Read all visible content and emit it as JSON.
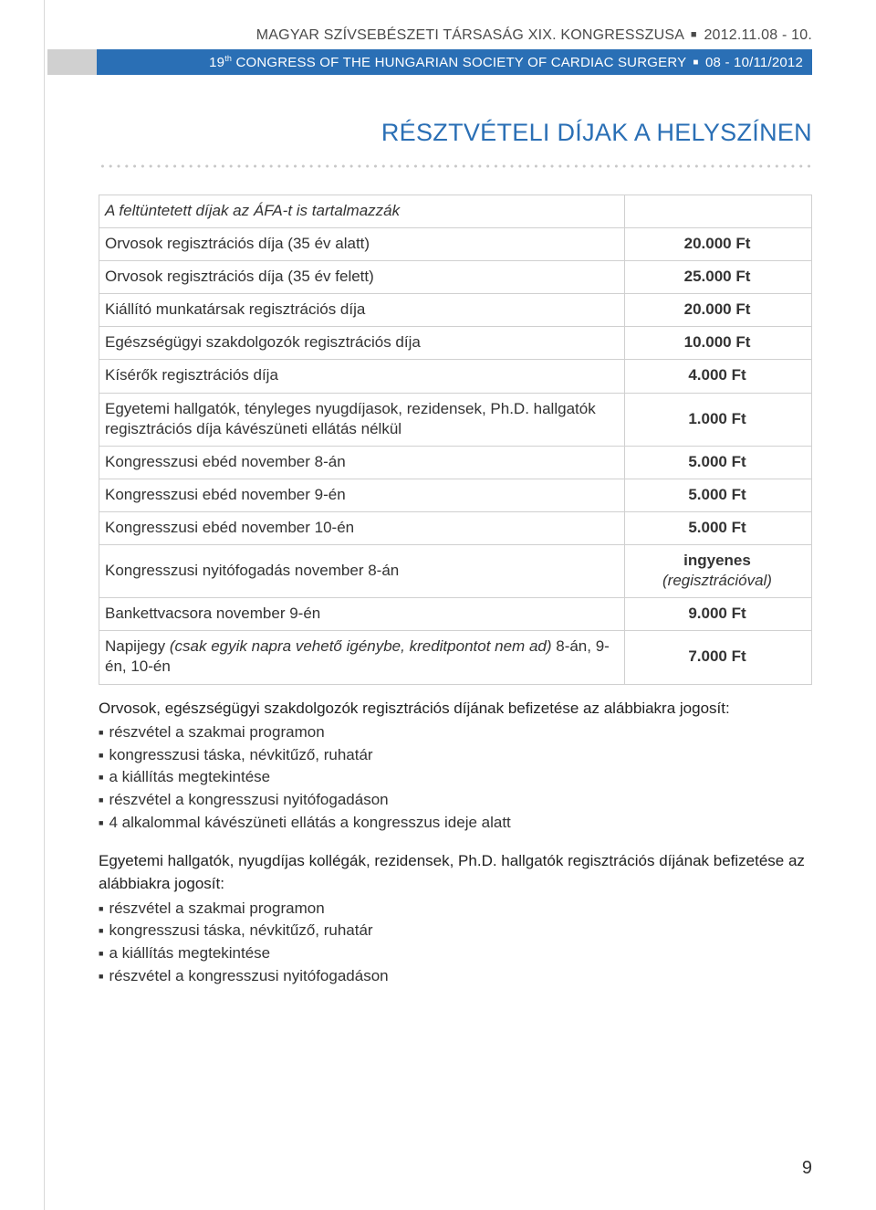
{
  "header": {
    "line1_pre": "MAGYAR SZÍVSEBÉSZETI TÁRSASÁG XIX. KONGRESSZUSA",
    "line1_date": "2012.11.08 - 10.",
    "line2_pre": "19",
    "line2_sup": "th",
    "line2_mid": " CONGRESS OF THE HUNGARIAN SOCIETY OF CARDIAC SURGERY",
    "line2_date": "08 - 10/11/2012"
  },
  "title": "RÉSZTVÉTELI DÍJAK A HELYSZÍNEN",
  "table_header": "A feltüntetett díjak az ÁFA-t is tartalmazzák",
  "rows": [
    {
      "desc": "Orvosok regisztrációs díja (35 év alatt)",
      "val": "20.000 Ft"
    },
    {
      "desc": "Orvosok regisztrációs díja (35 év felett)",
      "val": "25.000 Ft"
    },
    {
      "desc": "Kiállító munkatársak regisztrációs díja",
      "val": "20.000 Ft"
    },
    {
      "desc": "Egészségügyi szakdolgozók regisztrációs díja",
      "val": "10.000 Ft"
    },
    {
      "desc": "Kísérők regisztrációs díja",
      "val": "4.000 Ft"
    },
    {
      "desc": "Egyetemi hallgatók, tényleges nyugdíjasok, rezidensek, Ph.D. hallgatók regisztrációs díja kávészüneti ellátás nélkül",
      "val": "1.000 Ft"
    },
    {
      "desc": "Kongresszusi ebéd november 8-án",
      "val": "5.000 Ft"
    },
    {
      "desc": "Kongresszusi ebéd november 9-én",
      "val": "5.000 Ft"
    },
    {
      "desc": "Kongresszusi ebéd november 10-én",
      "val": "5.000 Ft"
    },
    {
      "desc": "Kongresszusi nyitófogadás november 8-án",
      "val_html": "ingyenes",
      "val_suffix_ital": " (regisztrációval)"
    },
    {
      "desc": "Bankettvacsora november 9-én",
      "val": "9.000 Ft"
    },
    {
      "desc_pre": "Napijegy ",
      "desc_ital": "(csak egyik napra vehető igénybe, kreditpontot nem ad)",
      "desc_post": " 8-án, 9-én, 10-én",
      "val": "7.000 Ft"
    }
  ],
  "entitle1": {
    "lead": "Orvosok, egészségügyi szakdolgozók regisztrációs díjának befizetése az alábbiakra jogosít:",
    "items": [
      "részvétel a szakmai programon",
      "kongresszusi táska, névkitűző, ruhatár",
      "a kiállítás megtekintése",
      "részvétel a kongresszusi nyitófogadáson",
      "4 alkalommal kávészüneti ellátás a kongresszus ideje alatt"
    ]
  },
  "entitle2": {
    "lead": "Egyetemi hallgatók, nyugdíjas kollégák, rezidensek, Ph.D. hallgatók regisztrációs  díjának befizetése az alábbiakra jogosít:",
    "items": [
      "részvétel a szakmai programon",
      "kongresszusi táska, névkitűző, ruhatár",
      "a kiállítás megtekintése",
      "részvétel a kongresszusi nyitófogadáson"
    ]
  },
  "page_number": "9"
}
